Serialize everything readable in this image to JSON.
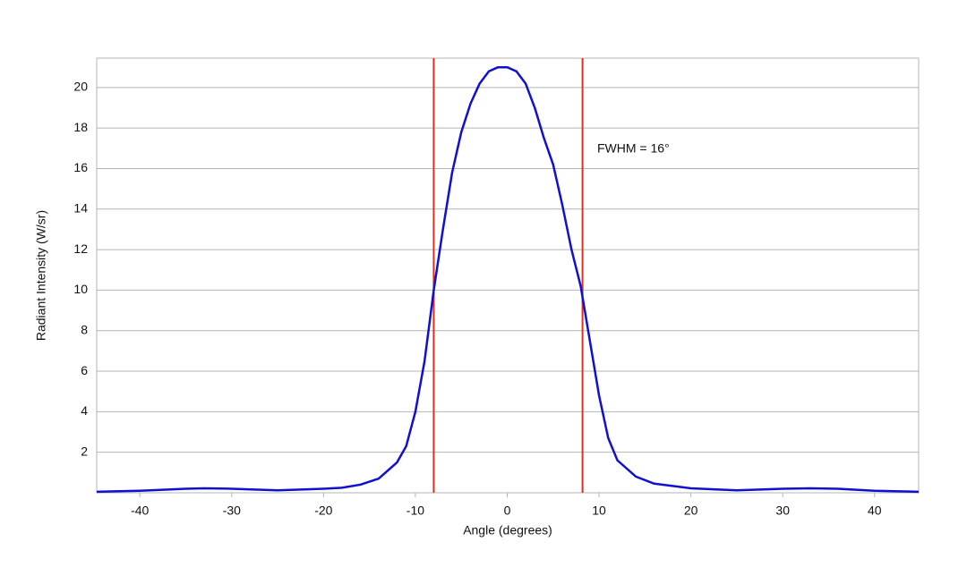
{
  "chart_data": {
    "type": "line",
    "xlabel": "Angle (degrees)",
    "ylabel": "Radiant Intensity (W/sr)",
    "annotation": "FWHM = 16°",
    "x": [
      -44.7,
      -40,
      -35,
      -33,
      -30,
      -25,
      -20,
      -18,
      -16,
      -14,
      -12,
      -11,
      -10,
      -9,
      -8,
      -7,
      -6,
      -5,
      -4,
      -3,
      -2,
      -1,
      0,
      1,
      2,
      3,
      4,
      5,
      6,
      7,
      8,
      9,
      10,
      11,
      12,
      14,
      16,
      20,
      25,
      30,
      33,
      36,
      40,
      44.8
    ],
    "series": [
      {
        "color": "#1010d0",
        "values": [
          0.05,
          0.1,
          0.2,
          0.22,
          0.2,
          0.12,
          0.2,
          0.25,
          0.4,
          0.7,
          1.5,
          2.3,
          4,
          6.5,
          10,
          13,
          15.8,
          17.8,
          19.2,
          20.2,
          20.8,
          21,
          21,
          20.8,
          20.2,
          19,
          17.5,
          16.2,
          14.2,
          12,
          10.2,
          7.5,
          4.8,
          2.7,
          1.6,
          0.8,
          0.45,
          0.22,
          0.12,
          0.2,
          0.22,
          0.2,
          0.1,
          0.05
        ]
      }
    ],
    "vlines": [
      -8,
      8.2
    ],
    "vline_color": "#e0301e",
    "xlim": [
      -44.7,
      44.8
    ],
    "ylim": [
      0,
      21.45
    ],
    "xticks": [
      -40,
      -30,
      -20,
      -10,
      0,
      10,
      20,
      30,
      40
    ],
    "yticks": [
      2,
      4,
      6,
      8,
      10,
      12,
      14,
      16,
      18,
      20
    ],
    "grid": true
  }
}
